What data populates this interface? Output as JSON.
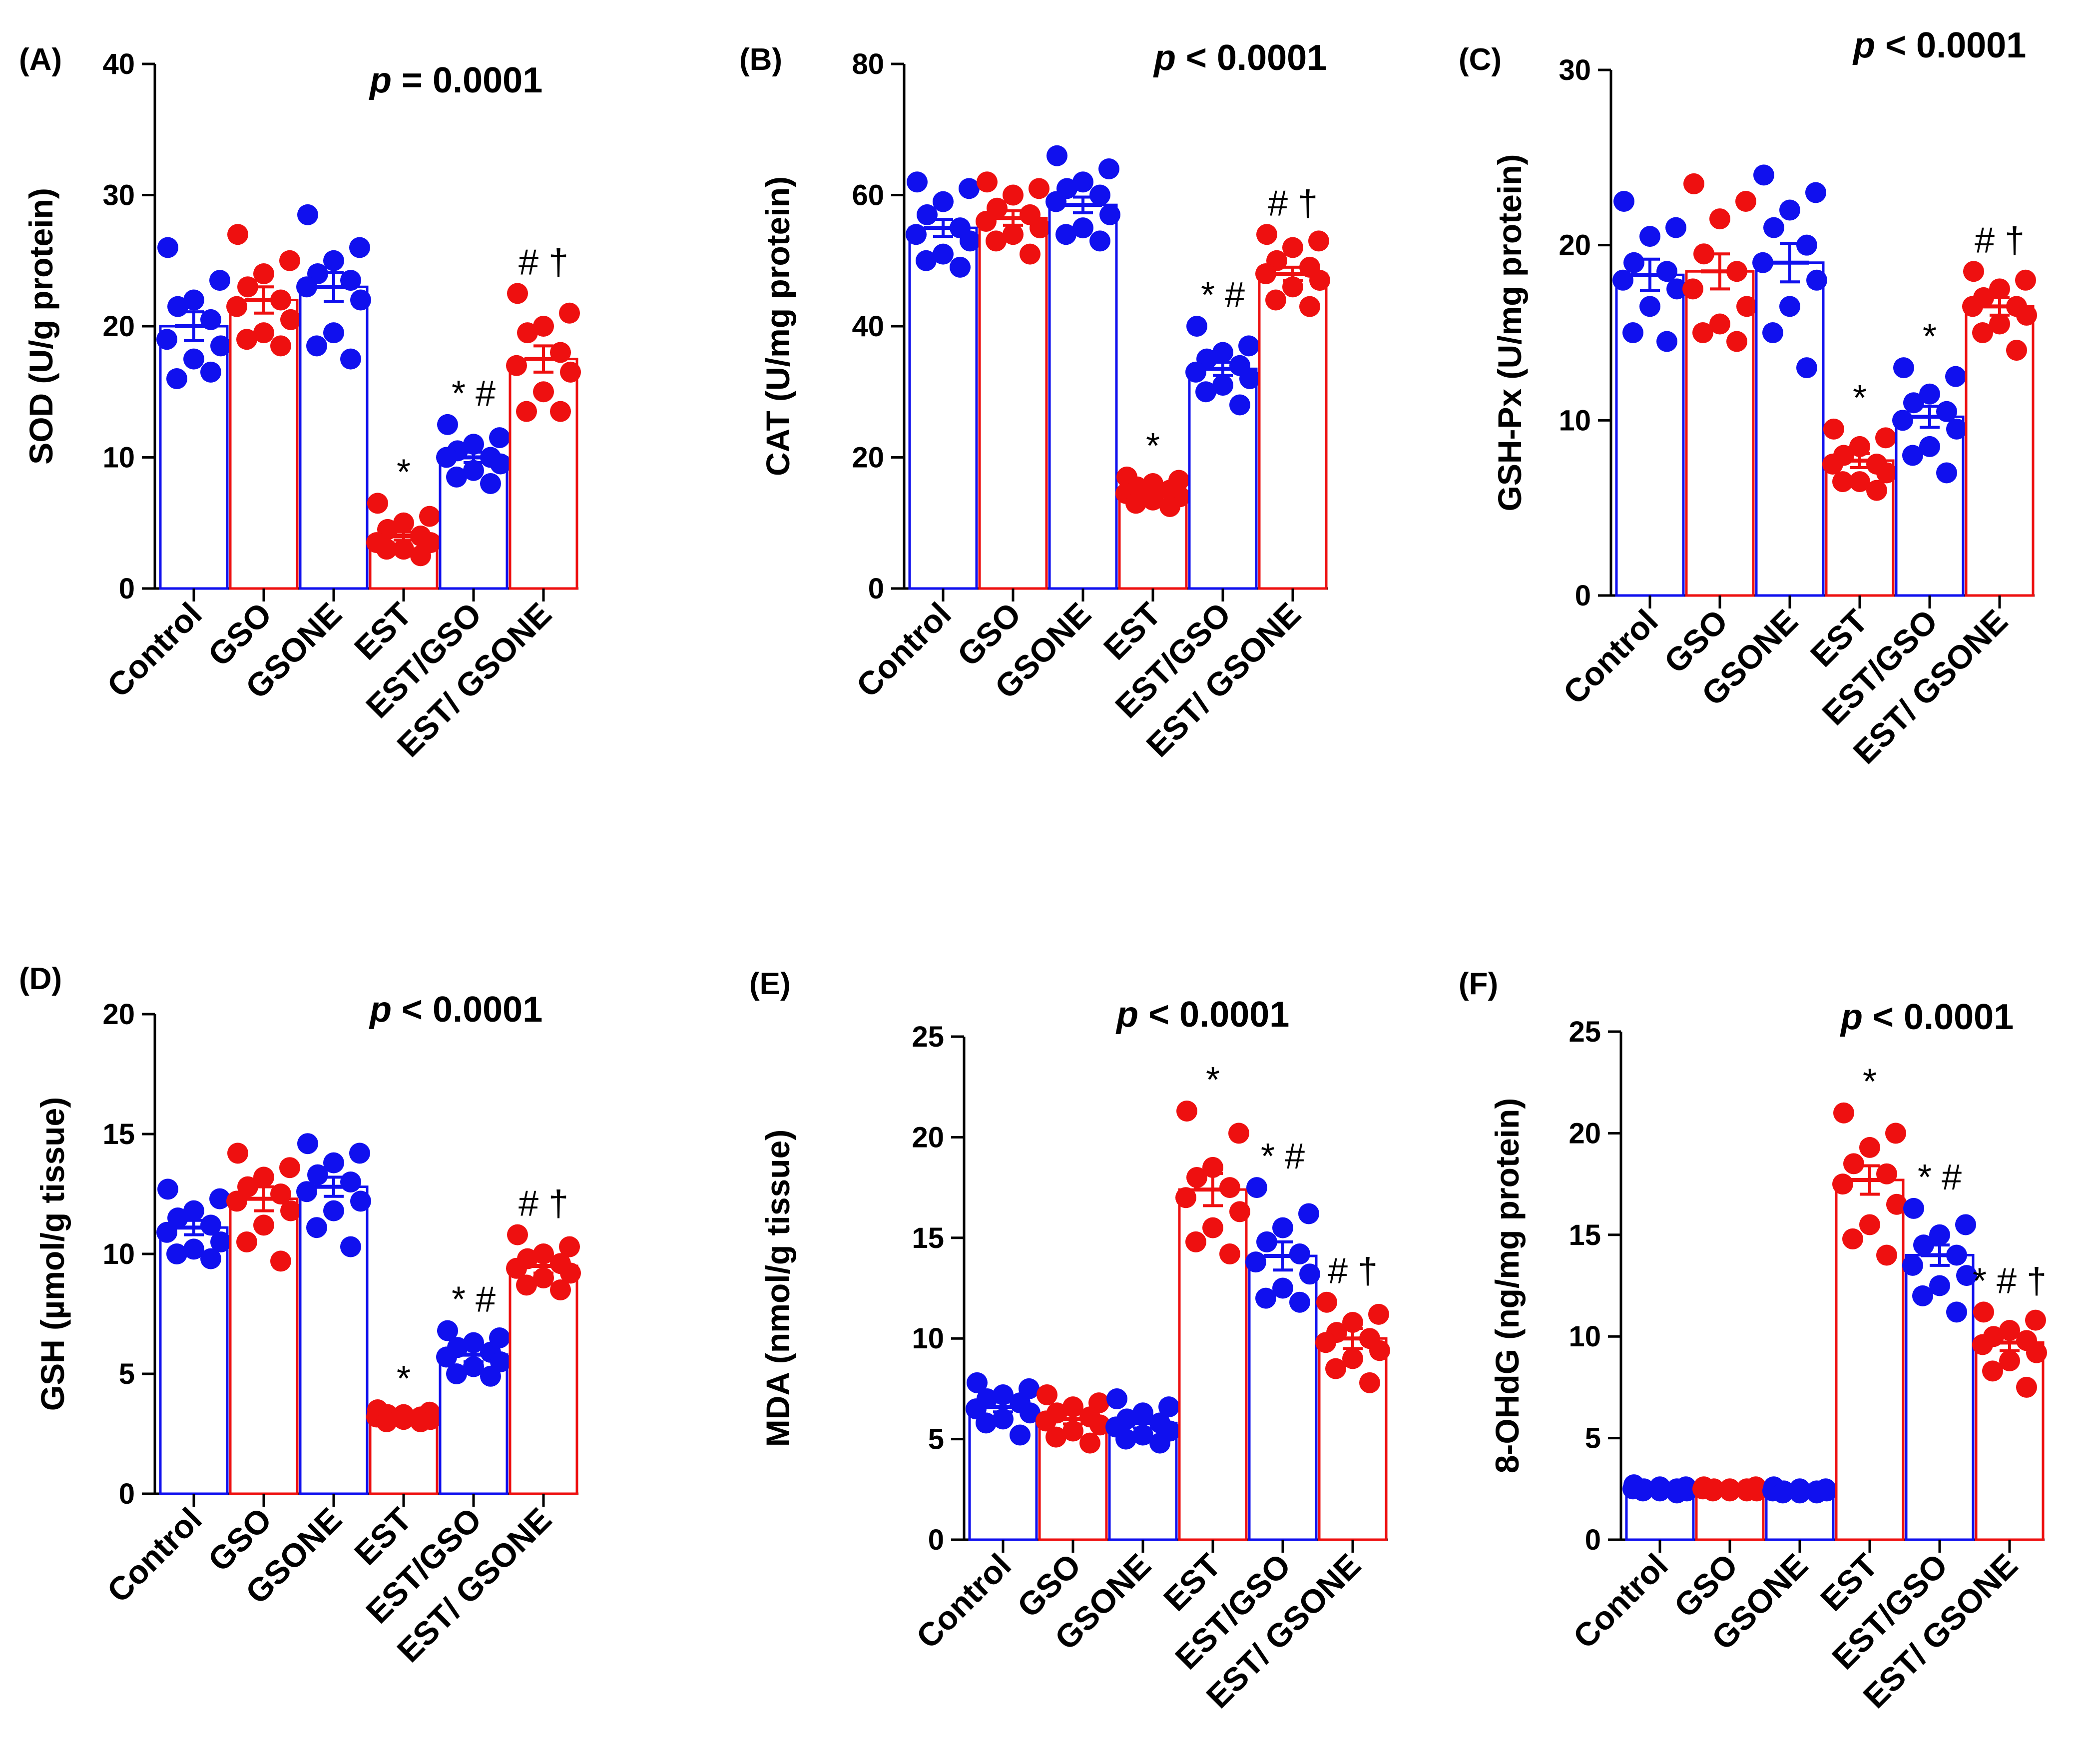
{
  "figure": {
    "colors": {
      "blue": "#1010EE",
      "red": "#EE1010",
      "axis": "#000000"
    },
    "panels_note": "six dot-bar plots (mean ± SEM with individual points)"
  },
  "chart_data": [
    {
      "type": "bar",
      "panel": "(A)",
      "p_label": "p",
      "p_text": "= 0.0001",
      "ylabel": "SOD (U/g protein)",
      "ylim": [
        0,
        40
      ],
      "yticks": [
        "0",
        "10",
        "20",
        "30",
        "40"
      ],
      "categories": [
        "Control",
        "GSO",
        "GSONE",
        "EST",
        "EST/GSO",
        "EST/ GSONE"
      ],
      "values": [
        20,
        22,
        23,
        4,
        10,
        17.5
      ],
      "sem": [
        1.1,
        1.0,
        1.1,
        0.3,
        0.4,
        1.0
      ],
      "annotations": [
        "",
        "",
        "",
        "*",
        "*#",
        "#†"
      ],
      "points": [
        [
          26,
          23.5,
          22,
          21.5,
          20.5,
          19,
          18.5,
          17.5,
          16,
          16.5
        ],
        [
          27,
          25,
          24,
          23,
          22,
          21.5,
          20.5,
          19.5,
          19,
          18.5
        ],
        [
          28.5,
          26,
          25,
          24,
          23.5,
          23,
          22,
          19.5,
          18.5,
          17.5
        ],
        [
          6.5,
          5.5,
          5,
          4.5,
          4,
          3.5,
          3.5,
          3,
          3,
          2.5
        ],
        [
          12.5,
          11.5,
          11,
          10.5,
          10,
          10,
          9.5,
          9,
          8.5,
          8
        ],
        [
          22.5,
          21,
          20,
          19.5,
          18,
          17,
          16.5,
          15,
          13.5,
          13.5
        ]
      ]
    },
    {
      "type": "bar",
      "panel": "(B)",
      "p_label": "p",
      "p_text": "< 0.0001",
      "ylabel": "CAT (U/mg protein)",
      "ylim": [
        0,
        80
      ],
      "yticks": [
        "0",
        "20",
        "40",
        "60",
        "80"
      ],
      "categories": [
        "Control",
        "GSO",
        "GSONE",
        "EST",
        "EST/GSO",
        "EST/ GSONE"
      ],
      "values": [
        55,
        56.5,
        58.5,
        14.5,
        33.5,
        48
      ],
      "sem": [
        1.3,
        1.1,
        1.2,
        0.4,
        1.0,
        1.0
      ],
      "annotations": [
        "",
        "",
        "",
        "*",
        "*#",
        "#†"
      ],
      "points": [
        [
          62,
          61,
          59,
          57,
          55,
          54,
          53,
          51,
          50,
          49
        ],
        [
          62,
          61,
          60,
          58,
          57,
          56,
          55,
          54,
          53,
          51
        ],
        [
          66,
          64,
          62,
          61,
          60,
          59,
          57,
          55,
          54,
          53
        ],
        [
          17,
          16.5,
          16,
          15.5,
          15,
          14.5,
          14,
          13.5,
          13,
          12.5
        ],
        [
          40,
          37,
          36,
          35,
          34,
          33,
          32,
          31,
          30,
          28
        ],
        [
          54,
          53,
          52,
          50,
          49,
          48,
          47,
          46,
          44,
          43
        ]
      ]
    },
    {
      "type": "bar",
      "panel": "(C)",
      "p_label": "p",
      "p_text": "< 0.0001",
      "ylabel": "GSH-Px (U/mg protein)",
      "ylim": [
        0,
        30
      ],
      "yticks": [
        "0",
        "10",
        "20",
        "30"
      ],
      "categories": [
        "Control",
        "GSO",
        "GSONE",
        "EST",
        "EST/GSO",
        "EST/ GSONE"
      ],
      "values": [
        18.3,
        18.5,
        19,
        7.7,
        10.2,
        16.5
      ],
      "sem": [
        0.9,
        1.0,
        1.1,
        0.4,
        0.6,
        0.5
      ],
      "annotations": [
        "",
        "",
        "",
        "*",
        "*",
        "#†"
      ],
      "points": [
        [
          22.5,
          21,
          20.5,
          19,
          18.5,
          18,
          17.5,
          16.5,
          15,
          14.5
        ],
        [
          23.5,
          22.5,
          21.5,
          19.5,
          18.5,
          17.5,
          16.5,
          15.5,
          15,
          14.5
        ],
        [
          24,
          23,
          22,
          21,
          20,
          19,
          18,
          16.5,
          15,
          13
        ],
        [
          9.5,
          9,
          8.5,
          8,
          7.5,
          7.5,
          7,
          6.5,
          6.5,
          6
        ],
        [
          13,
          12.5,
          11.5,
          11,
          10.5,
          10,
          9.5,
          8.5,
          8,
          7
        ],
        [
          18.5,
          18,
          17.5,
          17,
          16.5,
          16.5,
          16,
          15.5,
          15,
          14
        ]
      ]
    },
    {
      "type": "bar",
      "panel": "(D)",
      "p_label": "p",
      "p_text": "< 0.0001",
      "ylabel": "GSH (µmol/g tissue)",
      "ylim": [
        0,
        20
      ],
      "yticks": [
        "0",
        "5",
        "10",
        "15",
        "20"
      ],
      "categories": [
        "Control",
        "GSO",
        "GSONE",
        "EST",
        "EST/GSO",
        "EST/ GSONE"
      ],
      "values": [
        11.1,
        12.3,
        12.8,
        3.2,
        5.8,
        9.5
      ],
      "sem": [
        0.3,
        0.5,
        0.4,
        0.1,
        0.3,
        0.3
      ],
      "annotations": [
        "",
        "",
        "",
        "*",
        "*#",
        "#†"
      ],
      "points": [
        [
          12.7,
          12.3,
          11.8,
          11.5,
          11.2,
          10.9,
          10.5,
          10.2,
          10,
          9.8
        ],
        [
          14.2,
          13.6,
          13.2,
          12.8,
          12.5,
          12.2,
          11.8,
          11.2,
          10.5,
          9.7
        ],
        [
          14.6,
          14.2,
          13.8,
          13.3,
          13,
          12.6,
          12.2,
          11.8,
          11.1,
          10.3
        ],
        [
          3.5,
          3.4,
          3.3,
          3.3,
          3.2,
          3.2,
          3.1,
          3.1,
          3,
          3
        ],
        [
          6.8,
          6.5,
          6.3,
          6.1,
          5.9,
          5.7,
          5.5,
          5.3,
          5,
          4.9
        ],
        [
          10.8,
          10.3,
          10,
          9.8,
          9.6,
          9.4,
          9.2,
          9,
          8.7,
          8.5
        ]
      ]
    },
    {
      "type": "bar",
      "panel": "(E)",
      "p_label": "p",
      "p_text": "< 0.0001",
      "ylabel": "MDA (nmol/g tissue)",
      "ylim": [
        0,
        25
      ],
      "yticks": [
        "0",
        "5",
        "10",
        "15",
        "20",
        "25"
      ],
      "categories": [
        "Control",
        "GSO",
        "GSONE",
        "EST",
        "EST/GSO",
        "EST/ GSONE"
      ],
      "values": [
        6.6,
        6,
        5.8,
        17.4,
        14.1,
        10
      ],
      "sem": [
        0.25,
        0.25,
        0.25,
        0.8,
        0.7,
        0.5
      ],
      "annotations": [
        "",
        "",
        "",
        "*",
        "*#",
        "#†"
      ],
      "points": [
        [
          7.8,
          7.5,
          7.2,
          7,
          6.8,
          6.5,
          6.3,
          6,
          5.8,
          5.2
        ],
        [
          7.2,
          6.8,
          6.6,
          6.3,
          6.1,
          5.9,
          5.7,
          5.4,
          5.1,
          4.8
        ],
        [
          7,
          6.6,
          6.3,
          6,
          5.8,
          5.6,
          5.4,
          5.2,
          5,
          4.8
        ],
        [
          21.3,
          20.2,
          18.5,
          18,
          17.5,
          17,
          16.3,
          15.5,
          14.8,
          14.2
        ],
        [
          17.5,
          16.2,
          15.5,
          14.8,
          14.2,
          13.8,
          13.2,
          12.5,
          12,
          11.8
        ],
        [
          11.8,
          11.2,
          10.8,
          10.3,
          10,
          9.8,
          9.4,
          9,
          8.5,
          7.8
        ]
      ]
    },
    {
      "type": "bar",
      "panel": "(F)",
      "p_label": "p",
      "p_text": "< 0.0001",
      "ylabel": "8-OHdG  (ng/mg protein)",
      "ylim": [
        0,
        25
      ],
      "yticks": [
        "0",
        "5",
        "10",
        "15",
        "20",
        "25"
      ],
      "categories": [
        "Control",
        "GSO",
        "GSONE",
        "EST",
        "EST/GSO",
        "EST/ GSONE"
      ],
      "values": [
        2.5,
        2.5,
        2.4,
        17.7,
        14,
        9.7
      ],
      "sem": [
        0.05,
        0.05,
        0.05,
        0.7,
        0.5,
        0.4
      ],
      "annotations": [
        "",
        "",
        "",
        "*",
        "*#",
        "*#†"
      ],
      "points": [
        [
          2.7,
          2.6,
          2.6,
          2.5,
          2.5,
          2.5,
          2.4,
          2.4,
          2.4,
          2.3
        ],
        [
          2.6,
          2.6,
          2.5,
          2.5,
          2.5,
          2.5,
          2.4,
          2.4,
          2.4,
          2.4
        ],
        [
          2.6,
          2.5,
          2.5,
          2.4,
          2.4,
          2.4,
          2.4,
          2.3,
          2.3,
          2.3
        ],
        [
          21,
          20,
          19.3,
          18.5,
          18,
          17.5,
          16.5,
          15.5,
          14.8,
          14
        ],
        [
          16.3,
          15.5,
          15,
          14.5,
          14,
          13.5,
          13,
          12.5,
          12,
          11.2
        ],
        [
          11.2,
          10.8,
          10.3,
          10,
          9.8,
          9.6,
          9.2,
          8.8,
          8.3,
          7.5
        ]
      ]
    }
  ]
}
